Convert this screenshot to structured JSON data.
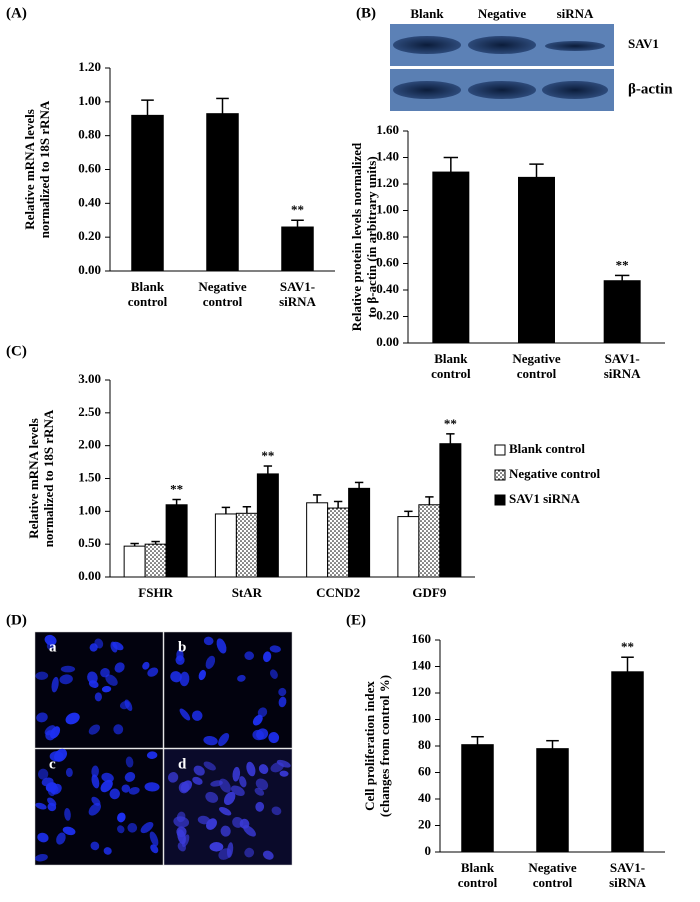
{
  "chart_data": [
    {
      "type": "bar",
      "panel_label": "(A)",
      "ylabel": "Relative mRNA levels\nnormalized to 18S rRNA",
      "categories": [
        "Blank\ncontrol",
        "Negative\ncontrol",
        "SAV1-\nsiRNA"
      ],
      "values": [
        0.92,
        0.93,
        0.26
      ],
      "errors": [
        0.09,
        0.09,
        0.04
      ],
      "significance": [
        null,
        null,
        "**"
      ],
      "color": "#000000",
      "ylim": [
        0,
        1.2
      ],
      "yticks": [
        {
          "value": 0,
          "label": "0.00"
        },
        {
          "value": 0.2,
          "label": "0.20"
        },
        {
          "value": 0.4,
          "label": "0.40"
        },
        {
          "value": 0.6,
          "label": "0.60"
        },
        {
          "value": 0.8,
          "label": "0.80"
        },
        {
          "value": 1.0,
          "label": "1.00"
        },
        {
          "value": 1.2,
          "label": "1.20"
        }
      ]
    },
    {
      "type": "bar",
      "panel_label": "(B)",
      "blot_lanes": [
        "Blank",
        "Negative",
        "siRNA"
      ],
      "blot_rows": [
        "SAV1",
        "β-actin"
      ],
      "ylabel": "Relative protein levels normalized\nto β-actin (in arbitrary units)",
      "categories": [
        "Blank\ncontrol",
        "Negative\ncontrol",
        "SAV1-\nsiRNA"
      ],
      "values": [
        1.29,
        1.25,
        0.47
      ],
      "errors": [
        0.11,
        0.1,
        0.04
      ],
      "significance": [
        null,
        null,
        "**"
      ],
      "color": "#000000",
      "ylim": [
        0,
        1.6
      ],
      "yticks": [
        {
          "value": 0,
          "label": "0.00"
        },
        {
          "value": 0.2,
          "label": "0.20"
        },
        {
          "value": 0.4,
          "label": "0.40"
        },
        {
          "value": 0.6,
          "label": "0.60"
        },
        {
          "value": 0.8,
          "label": "0.80"
        },
        {
          "value": 1.0,
          "label": "1.00"
        },
        {
          "value": 1.2,
          "label": "1.20"
        },
        {
          "value": 1.4,
          "label": "1.40"
        },
        {
          "value": 1.6,
          "label": "1.60"
        }
      ]
    },
    {
      "type": "bar",
      "panel_label": "(C)",
      "ylabel": "Relative mRNA levels\nnormalized to 18S rRNA",
      "categories": [
        "FSHR",
        "StAR",
        "CCND2",
        "GDF9"
      ],
      "series": [
        {
          "name": "Blank control",
          "color": "#ffffff",
          "values": [
            0.47,
            0.96,
            1.13,
            0.92
          ],
          "errors": [
            0.04,
            0.1,
            0.12,
            0.08
          ],
          "significance": [
            null,
            null,
            null,
            null
          ]
        },
        {
          "name": "Negative control",
          "color": "#ffffff",
          "hatch": "dots",
          "values": [
            0.5,
            0.97,
            1.05,
            1.1
          ],
          "errors": [
            0.04,
            0.1,
            0.1,
            0.12
          ],
          "significance": [
            null,
            null,
            null,
            null
          ]
        },
        {
          "name": "SAV1 siRNA",
          "color": "#000000",
          "values": [
            1.1,
            1.57,
            1.35,
            2.03
          ],
          "errors": [
            0.08,
            0.12,
            0.09,
            0.15
          ],
          "significance": [
            "**",
            "**",
            null,
            "**"
          ]
        }
      ],
      "legend": "right",
      "ylim": [
        0,
        3
      ],
      "yticks": [
        {
          "value": 0,
          "label": "0.00"
        },
        {
          "value": 0.5,
          "label": "0.50"
        },
        {
          "value": 1.0,
          "label": "1.00"
        },
        {
          "value": 1.5,
          "label": "1.50"
        },
        {
          "value": 2.0,
          "label": "2.00"
        },
        {
          "value": 2.5,
          "label": "2.50"
        },
        {
          "value": 3.0,
          "label": "3.00"
        }
      ]
    },
    {
      "type": "image",
      "panel_label": "(D)",
      "subpanels": [
        "a",
        "b",
        "c",
        "d"
      ]
    },
    {
      "type": "bar",
      "panel_label": "(E)",
      "ylabel": "Cell proliferation index\n(changes from control %)",
      "categories": [
        "Blank\ncontrol",
        "Negative\ncontrol",
        "SAV1-\nsiRNA"
      ],
      "values": [
        81,
        78,
        136
      ],
      "errors": [
        6,
        6,
        11
      ],
      "significance": [
        null,
        null,
        "**"
      ],
      "color": "#000000",
      "ylim": [
        0,
        160
      ],
      "yticks": [
        0,
        20,
        40,
        60,
        80,
        100,
        120,
        140,
        160
      ]
    }
  ]
}
